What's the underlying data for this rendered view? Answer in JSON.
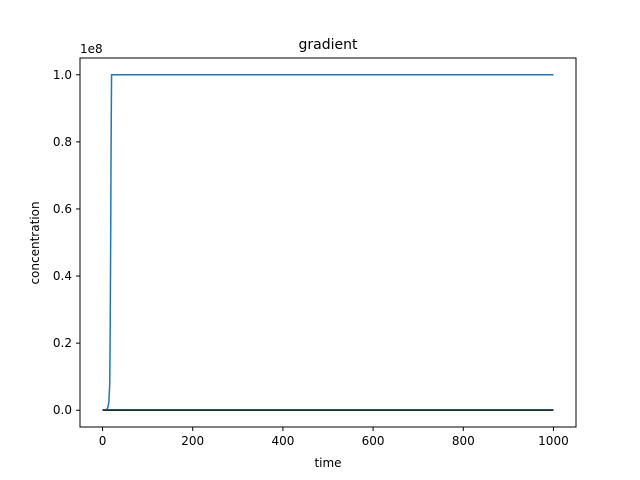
{
  "chart_data": {
    "type": "line",
    "title": "gradient",
    "xlabel": "time",
    "ylabel": "concentration",
    "offset_label": "1e8",
    "xlim": [
      -50,
      1050
    ],
    "ylim": [
      -5000000,
      105000000
    ],
    "x_ticks": [
      0,
      200,
      400,
      600,
      800,
      1000
    ],
    "x_tick_labels": [
      "0",
      "200",
      "400",
      "600",
      "800",
      "1000"
    ],
    "y_ticks": [
      0,
      20000000,
      40000000,
      60000000,
      80000000,
      100000000
    ],
    "y_tick_labels": [
      "0.0",
      "0.2",
      "0.4",
      "0.6",
      "0.8",
      "1.0"
    ],
    "grid": false,
    "series": [
      {
        "color": "#1f77b4",
        "x": [
          0,
          5,
          10,
          12,
          14,
          16,
          17,
          18,
          19,
          20,
          22,
          25,
          50,
          100,
          200,
          400,
          600,
          800,
          1000
        ],
        "y": [
          0,
          50000,
          300000,
          1000000,
          2500000,
          8000000,
          25000000,
          50000000,
          80000000,
          100000000,
          100000000,
          100000000,
          100000000,
          100000000,
          100000000,
          100000000,
          100000000,
          100000000,
          100000000
        ]
      },
      {
        "color": "#1f77b4",
        "x": [
          0,
          1000
        ],
        "y": [
          0,
          0
        ]
      },
      {
        "color": "#1f77b4",
        "x": [
          0,
          1000
        ],
        "y": [
          150000,
          150000
        ]
      },
      {
        "color": "#2a2a2a",
        "x": [
          0,
          1000
        ],
        "y": [
          0,
          0
        ]
      }
    ]
  }
}
